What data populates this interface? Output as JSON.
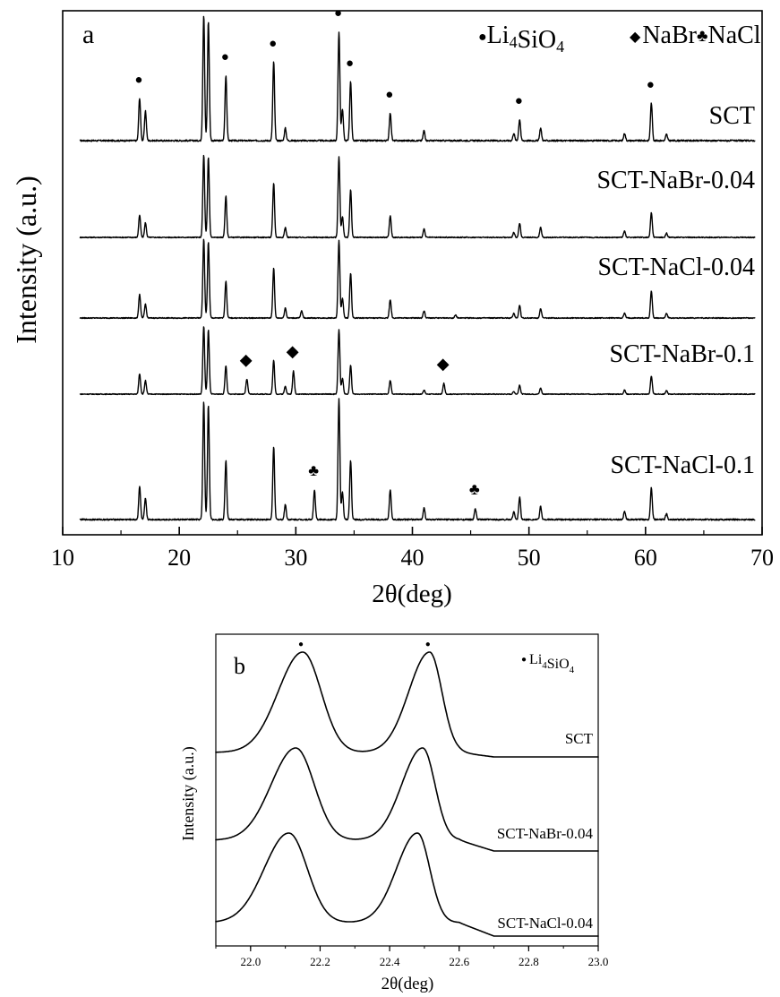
{
  "chart_data": [
    {
      "panel": "a",
      "type": "line",
      "xlabel": "2θ(deg)",
      "ylabel": "Intensity (a.u.)",
      "xlim": [
        10,
        70
      ],
      "xticks": [
        10,
        20,
        30,
        40,
        50,
        60,
        70
      ],
      "y_ticks_shown": false,
      "legend": {
        "position": "top-right",
        "entries": [
          {
            "marker": "●",
            "label": "Li4SiO4"
          },
          {
            "marker": "◆",
            "label": "NaBr"
          },
          {
            "marker": "♣",
            "label": "NaCl"
          }
        ]
      },
      "series": [
        {
          "name": "SCT",
          "peaks": [
            [
              16.6,
              0.34
            ],
            [
              17.1,
              0.24
            ],
            [
              22.1,
              1.0
            ],
            [
              22.5,
              0.95
            ],
            [
              24.0,
              0.52
            ],
            [
              28.1,
              0.63
            ],
            [
              29.1,
              0.1
            ],
            [
              33.7,
              0.87
            ],
            [
              34.0,
              0.25
            ],
            [
              34.7,
              0.47
            ],
            [
              38.1,
              0.22
            ],
            [
              41.0,
              0.08
            ],
            [
              48.7,
              0.06
            ],
            [
              49.2,
              0.17
            ],
            [
              51.0,
              0.1
            ],
            [
              58.2,
              0.06
            ],
            [
              60.5,
              0.3
            ],
            [
              61.8,
              0.05
            ]
          ]
        },
        {
          "name": "SCT-NaBr-0.04",
          "peaks": [
            [
              16.6,
              0.27
            ],
            [
              17.1,
              0.18
            ],
            [
              22.1,
              1.0
            ],
            [
              22.5,
              0.97
            ],
            [
              24.0,
              0.5
            ],
            [
              28.1,
              0.66
            ],
            [
              29.1,
              0.12
            ],
            [
              33.7,
              0.98
            ],
            [
              34.0,
              0.25
            ],
            [
              34.7,
              0.58
            ],
            [
              38.1,
              0.26
            ],
            [
              41.0,
              0.1
            ],
            [
              48.7,
              0.06
            ],
            [
              49.2,
              0.17
            ],
            [
              51.0,
              0.12
            ],
            [
              58.2,
              0.08
            ],
            [
              60.5,
              0.3
            ],
            [
              61.8,
              0.05
            ]
          ]
        },
        {
          "name": "SCT-NaCl-0.04",
          "peaks": [
            [
              16.6,
              0.3
            ],
            [
              17.1,
              0.18
            ],
            [
              22.1,
              1.0
            ],
            [
              22.5,
              0.96
            ],
            [
              24.0,
              0.47
            ],
            [
              28.1,
              0.63
            ],
            [
              29.1,
              0.13
            ],
            [
              30.5,
              0.09
            ],
            [
              33.7,
              0.98
            ],
            [
              34.0,
              0.25
            ],
            [
              34.7,
              0.57
            ],
            [
              38.1,
              0.23
            ],
            [
              41.0,
              0.09
            ],
            [
              43.7,
              0.04
            ],
            [
              48.7,
              0.06
            ],
            [
              49.2,
              0.16
            ],
            [
              51.0,
              0.12
            ],
            [
              58.2,
              0.06
            ],
            [
              60.5,
              0.34
            ],
            [
              61.8,
              0.06
            ]
          ]
        },
        {
          "name": "SCT-NaBr-0.1",
          "peaks": [
            [
              16.6,
              0.3
            ],
            [
              17.1,
              0.2
            ],
            [
              22.1,
              1.0
            ],
            [
              22.5,
              0.94
            ],
            [
              24.0,
              0.42
            ],
            [
              25.8,
              0.22
            ],
            [
              28.1,
              0.5
            ],
            [
              29.1,
              0.12
            ],
            [
              29.8,
              0.34
            ],
            [
              33.7,
              0.95
            ],
            [
              34.0,
              0.23
            ],
            [
              34.7,
              0.42
            ],
            [
              38.1,
              0.2
            ],
            [
              41.0,
              0.06
            ],
            [
              42.7,
              0.16
            ],
            [
              48.7,
              0.04
            ],
            [
              49.2,
              0.13
            ],
            [
              51.0,
              0.09
            ],
            [
              58.2,
              0.06
            ],
            [
              60.5,
              0.26
            ],
            [
              61.8,
              0.05
            ]
          ]
        },
        {
          "name": "SCT-NaCl-0.1",
          "peaks": [
            [
              16.6,
              0.28
            ],
            [
              17.1,
              0.18
            ],
            [
              22.1,
              1.0
            ],
            [
              22.5,
              0.97
            ],
            [
              24.0,
              0.5
            ],
            [
              28.1,
              0.62
            ],
            [
              29.1,
              0.13
            ],
            [
              31.6,
              0.25
            ],
            [
              33.7,
              1.02
            ],
            [
              34.0,
              0.23
            ],
            [
              34.7,
              0.5
            ],
            [
              38.1,
              0.25
            ],
            [
              41.0,
              0.1
            ],
            [
              45.4,
              0.09
            ],
            [
              48.7,
              0.07
            ],
            [
              49.2,
              0.19
            ],
            [
              51.0,
              0.11
            ],
            [
              58.2,
              0.07
            ],
            [
              60.5,
              0.27
            ],
            [
              61.8,
              0.05
            ]
          ]
        }
      ],
      "markers": [
        {
          "symbol": "●",
          "x": [
            16.6,
            22.1,
            24.0,
            28.1,
            33.7,
            34.7,
            38.1,
            49.2,
            60.5
          ],
          "curve": "SCT"
        },
        {
          "symbol": "◆",
          "x": [
            25.8,
            29.8,
            42.7
          ],
          "curve": "SCT-NaBr-0.1"
        },
        {
          "symbol": "♣",
          "x": [
            31.6,
            45.4
          ],
          "curve": "SCT-NaCl-0.1"
        }
      ]
    },
    {
      "panel": "b",
      "type": "line",
      "xlabel": "2θ(deg)",
      "ylabel": "Intensity (a.u.)",
      "xlim": [
        21.9,
        23.0
      ],
      "xticks": [
        "22.0",
        "22.2",
        "22.4",
        "22.6",
        "22.8",
        "23.0"
      ],
      "y_ticks_shown": false,
      "legend": {
        "position": "top-right",
        "entries": [
          {
            "marker": "●",
            "label": "Li4SiO4"
          }
        ]
      },
      "series": [
        {
          "name": "SCT",
          "peaks": [
            22.15,
            22.515
          ]
        },
        {
          "name": "SCT-NaBr-0.04",
          "peaks": [
            22.13,
            22.495
          ]
        },
        {
          "name": "SCT-NaCl-0.04",
          "peaks": [
            22.11,
            22.48
          ]
        }
      ],
      "markers": [
        {
          "symbol": "●",
          "x": [
            22.15,
            22.515
          ],
          "curve": "SCT"
        }
      ]
    }
  ],
  "colors": {
    "trace": "#000000",
    "background": "#ffffff"
  }
}
